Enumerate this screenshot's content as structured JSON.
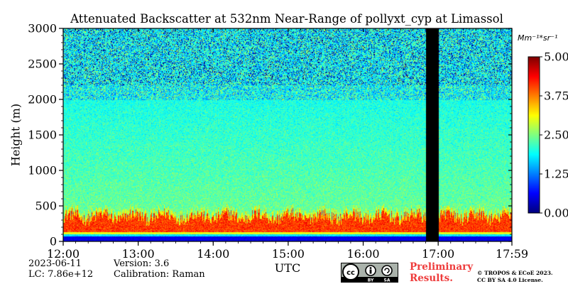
{
  "chart_data": {
    "type": "heatmap",
    "title": "Attenuated Backscatter at 532nm Near-Range of pollyxt_cyp at Limassol",
    "xlabel": "UTC",
    "ylabel": "Height (m)",
    "x_range": [
      "12:00",
      "17:59"
    ],
    "x_ticks": [
      "12:00",
      "13:00",
      "14:00",
      "15:00",
      "16:00",
      "17:00",
      "17:59"
    ],
    "x_tick_values_hours": [
      12.0,
      13.0,
      14.0,
      15.0,
      16.0,
      17.0,
      17.983
    ],
    "ylim": [
      0,
      3000
    ],
    "y_ticks": [
      0,
      500,
      1000,
      1500,
      2000,
      2500,
      3000
    ],
    "colorbar": {
      "unit": "Mm⁻¹*sr⁻¹",
      "range": [
        0.0,
        5.0
      ],
      "ticks": [
        "0.00",
        "1.25",
        "2.50",
        "3.75",
        "5.00"
      ],
      "colormap": "jet"
    },
    "data_gap_utc": [
      "16:50",
      "17:00"
    ],
    "layers": [
      {
        "from_m": 0,
        "to_m": 100,
        "level": "low"
      },
      {
        "from_m": 100,
        "to_m": 150,
        "level": "transition"
      },
      {
        "from_m": 150,
        "to_m": 400,
        "level": "high (~4.0-5.0)"
      },
      {
        "from_m": 400,
        "to_m": 2000,
        "level": "medium (~2.0-3.0)"
      },
      {
        "from_m": 2000,
        "to_m": 3000,
        "level": "noisy (~0.5-2.5)"
      }
    ]
  },
  "footer": {
    "date": "2023-06-11",
    "lc": "LC: 7.86e+12",
    "version": "Version: 3.6",
    "calibration": "Calibration: Raman",
    "preliminary_line1": "Preliminary",
    "preliminary_line2": "Results.",
    "copyright_line1": "© TROPOS & ECoE 2023.",
    "copyright_line2": "CC BY SA 4.0 License.",
    "license_badge_by": "BY",
    "license_badge_sa": "SA",
    "license_badge_cc": "cc"
  },
  "colors": {
    "gap": "#000000",
    "preliminary": "#ee3c3c"
  }
}
